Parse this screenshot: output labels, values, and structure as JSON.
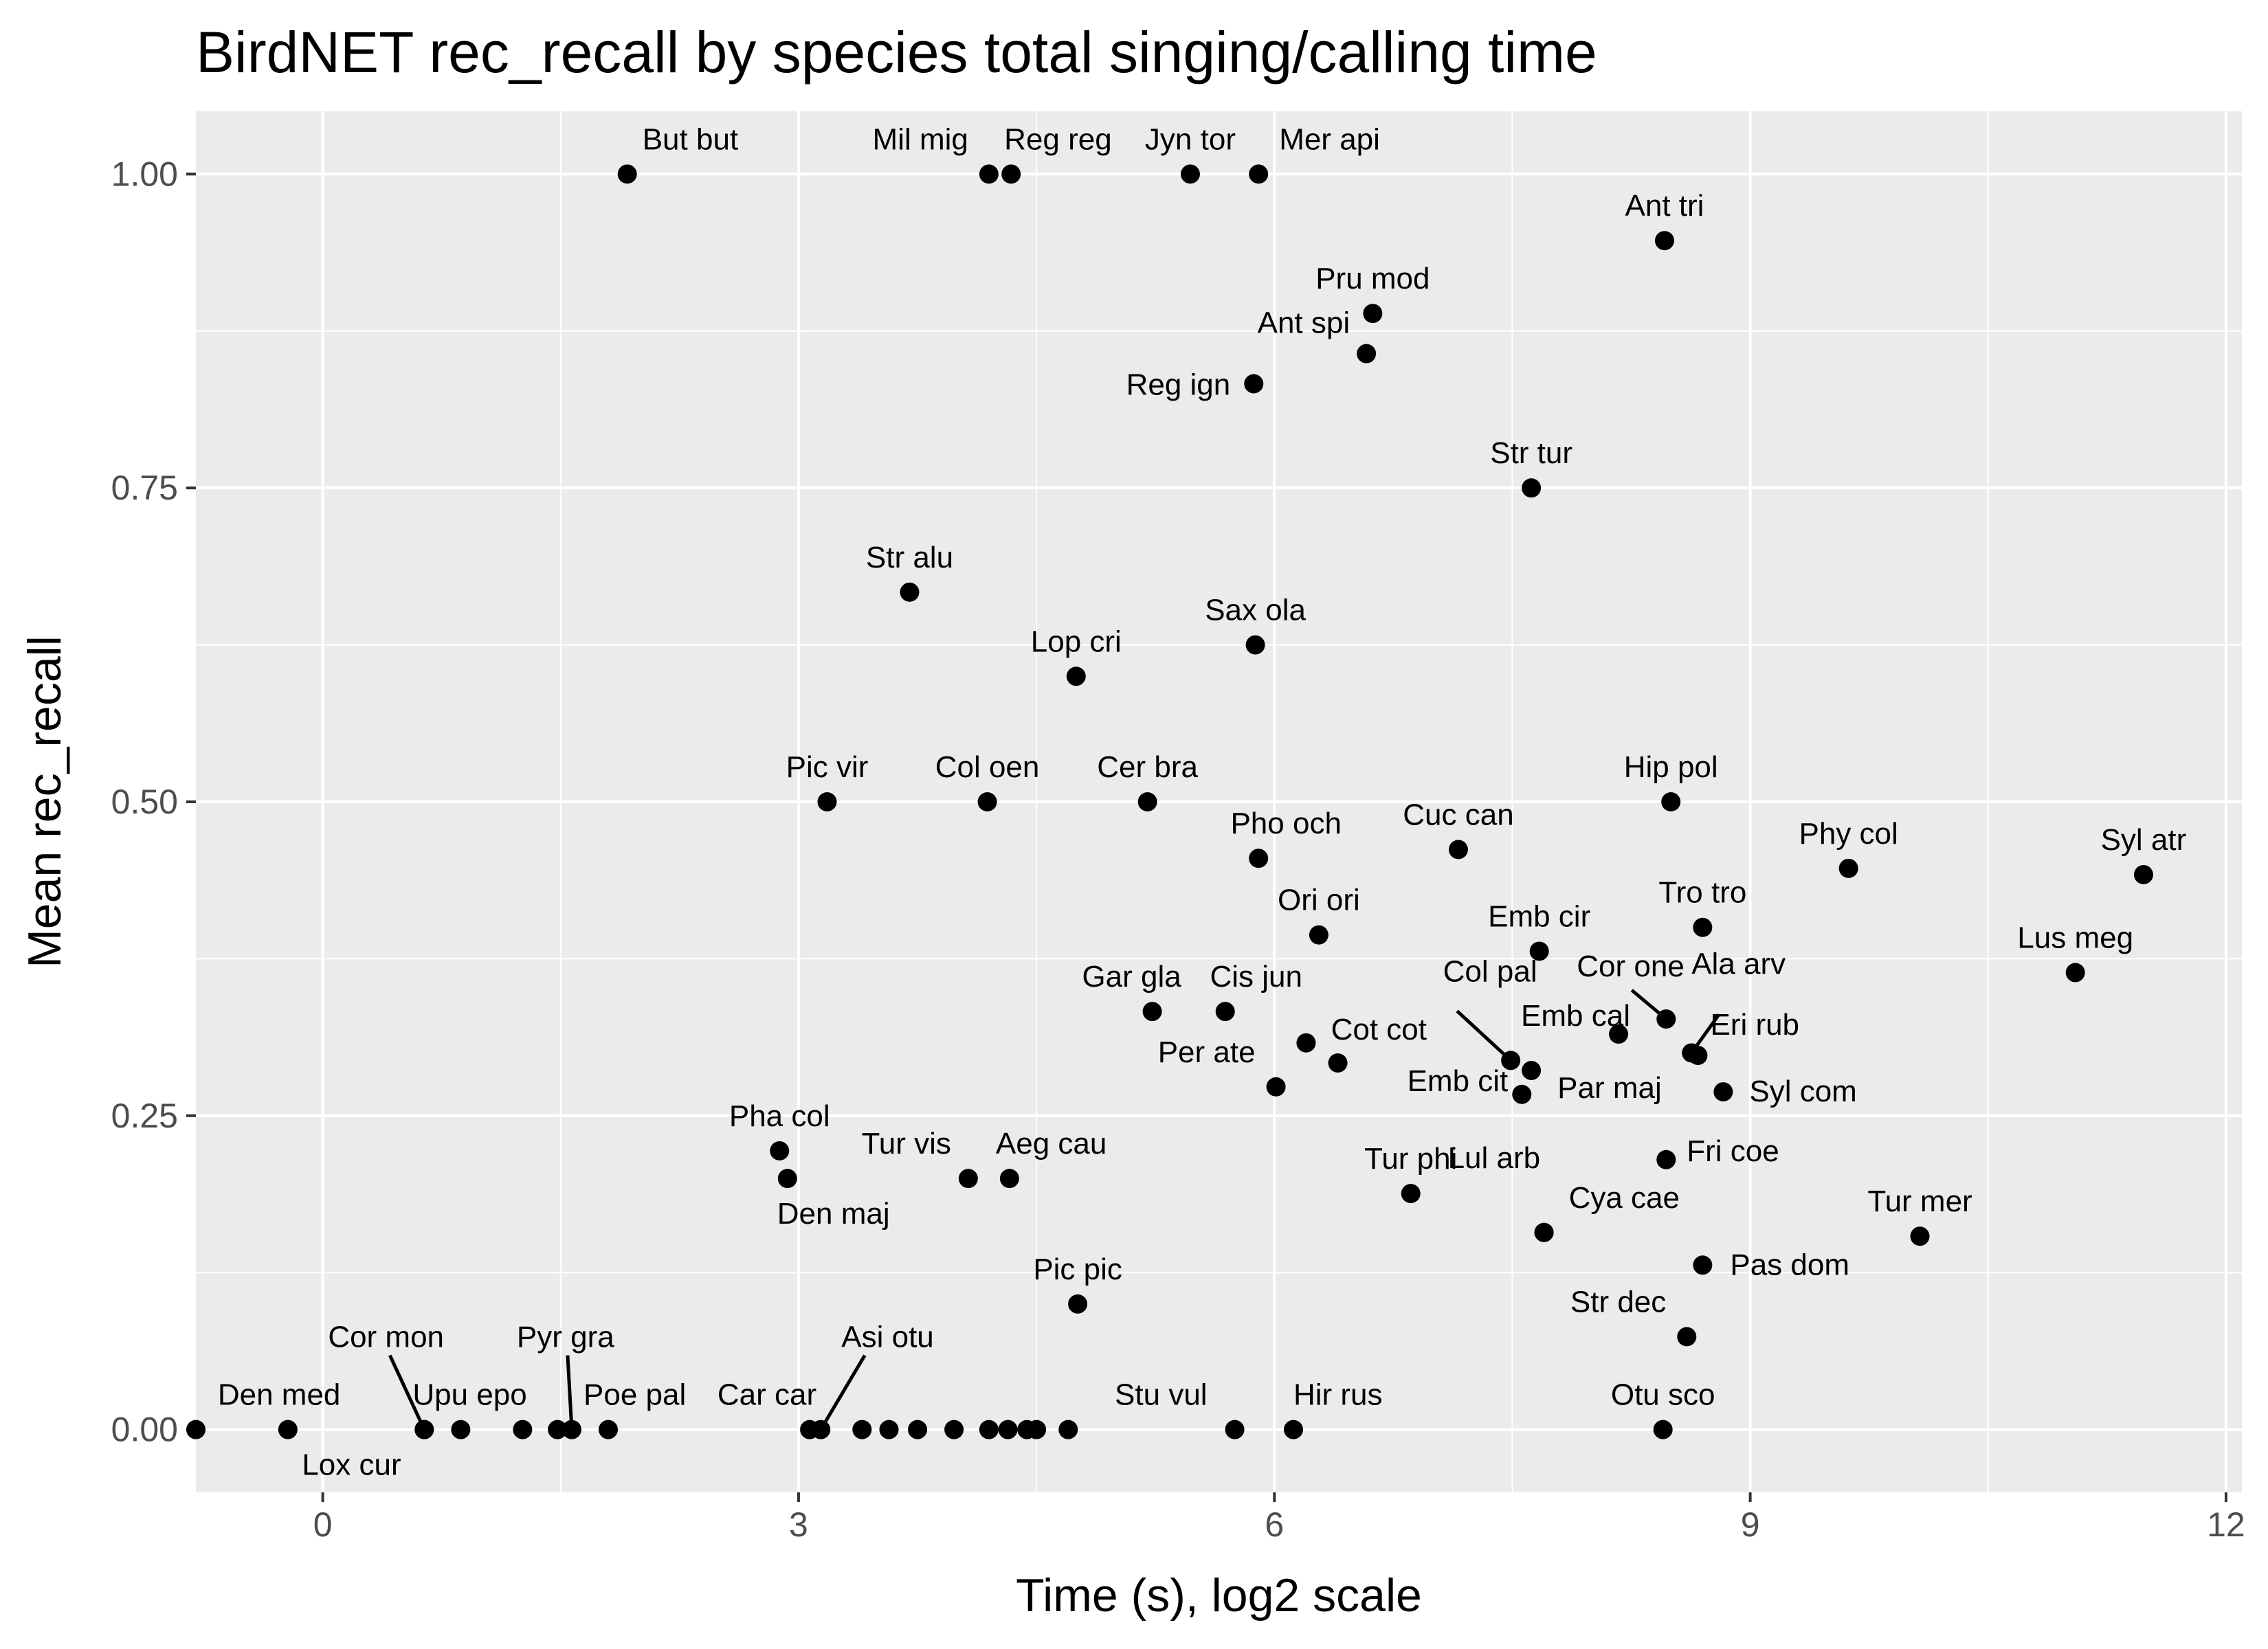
{
  "chart_data": {
    "type": "scatter",
    "title": "BirdNET rec_recall by species total singing/calling time",
    "xlabel": "Time (s), log2 scale",
    "ylabel": "Mean rec_recall",
    "xlim": [
      -0.8,
      12.1
    ],
    "ylim": [
      -0.05,
      1.05
    ],
    "x_ticks": [
      0,
      3,
      6,
      9,
      12
    ],
    "x_tick_labels": [
      "0",
      "3",
      "6",
      "9",
      "12"
    ],
    "y_ticks": [
      0,
      0.25,
      0.5,
      0.75,
      1.0
    ],
    "y_tick_labels": [
      "0.00",
      "0.25",
      "0.50",
      "0.75",
      "1.00"
    ],
    "grid": true,
    "colors": {
      "panel": "#ebebeb",
      "grid": "#ffffff",
      "point": "#000000"
    },
    "points": [
      {
        "label": "But but",
        "x": 1.92,
        "y": 1.0
      },
      {
        "label": "Mil mig",
        "x": 4.2,
        "y": 1.0
      },
      {
        "label": "Reg reg",
        "x": 4.34,
        "y": 1.0
      },
      {
        "label": "Jyn tor",
        "x": 5.47,
        "y": 1.0
      },
      {
        "label": "Mer api",
        "x": 5.9,
        "y": 1.0
      },
      {
        "label": "Ant tri",
        "x": 8.46,
        "y": 0.947
      },
      {
        "label": "Pru mod",
        "x": 6.62,
        "y": 0.889
      },
      {
        "label": "Ant spi",
        "x": 6.58,
        "y": 0.857
      },
      {
        "label": "Reg ign",
        "x": 5.87,
        "y": 0.833
      },
      {
        "label": "Str tur",
        "x": 7.62,
        "y": 0.75
      },
      {
        "label": "Str alu",
        "x": 3.7,
        "y": 0.667
      },
      {
        "label": "Sax ola",
        "x": 5.88,
        "y": 0.625
      },
      {
        "label": "Lop cri",
        "x": 4.75,
        "y": 0.6
      },
      {
        "label": "Pic vir",
        "x": 3.18,
        "y": 0.5
      },
      {
        "label": "Col oen",
        "x": 4.19,
        "y": 0.5
      },
      {
        "label": "Cer bra",
        "x": 5.2,
        "y": 0.5
      },
      {
        "label": "Hip pol",
        "x": 8.5,
        "y": 0.5
      },
      {
        "label": "Pho och",
        "x": 5.9,
        "y": 0.455
      },
      {
        "label": "Cuc can",
        "x": 7.16,
        "y": 0.462
      },
      {
        "label": "Phy col",
        "x": 9.62,
        "y": 0.447
      },
      {
        "label": "Syl atr",
        "x": 11.48,
        "y": 0.442
      },
      {
        "label": "Ori ori",
        "x": 6.28,
        "y": 0.394
      },
      {
        "label": "Emb cir",
        "x": 7.67,
        "y": 0.381
      },
      {
        "label": "Tro tro",
        "x": 8.7,
        "y": 0.4
      },
      {
        "label": "Lus meg",
        "x": 11.05,
        "y": 0.364
      },
      {
        "label": "Gar gla",
        "x": 5.23,
        "y": 0.333
      },
      {
        "label": "Cis jun",
        "x": 5.69,
        "y": 0.333
      },
      {
        "label": "Col pal",
        "x": 7.49,
        "y": 0.294
      },
      {
        "label": "Cor one",
        "x": 8.47,
        "y": 0.327
      },
      {
        "label": "Ala arv",
        "x": 8.63,
        "y": 0.3
      },
      {
        "label": "Emb cal",
        "x": 8.17,
        "y": 0.315
      },
      {
        "label": "Eri rub",
        "x": 8.67,
        "y": 0.298
      },
      {
        "label": "Per ate",
        "x": 6.01,
        "y": 0.273
      },
      {
        "label": "Cot cot",
        "x": 6.4,
        "y": 0.292
      },
      {
        "label": "",
        "x": 6.2,
        "y": 0.308
      },
      {
        "label": "Emb cit",
        "x": 7.56,
        "y": 0.267
      },
      {
        "label": "Par maj",
        "x": 7.62,
        "y": 0.286
      },
      {
        "label": "Syl com",
        "x": 8.83,
        "y": 0.269
      },
      {
        "label": "Pha col",
        "x": 2.88,
        "y": 0.222
      },
      {
        "label": "Den maj",
        "x": 2.93,
        "y": 0.2
      },
      {
        "label": "Tur vis",
        "x": 4.07,
        "y": 0.2
      },
      {
        "label": "Aeg cau",
        "x": 4.33,
        "y": 0.2
      },
      {
        "label": "Lul arb",
        "x": 7.7,
        "y": 0.157
      },
      {
        "label": "Fri coe",
        "x": 8.47,
        "y": 0.215
      },
      {
        "label": "Tur phi",
        "x": 6.86,
        "y": 0.188
      },
      {
        "label": "Cya cae",
        "x": 7.7,
        "y": 0.157
      },
      {
        "label": "Tur mer",
        "x": 10.07,
        "y": 0.154
      },
      {
        "label": "Pas dom",
        "x": 8.7,
        "y": 0.131
      },
      {
        "label": "Pic pic",
        "x": 4.76,
        "y": 0.1
      },
      {
        "label": "Str dec",
        "x": 8.6,
        "y": 0.074
      },
      {
        "label": "",
        "x": -0.8,
        "y": 0.0
      },
      {
        "label": "Den med",
        "x": -0.22,
        "y": 0.0
      },
      {
        "label": "Cor mon",
        "x": 0.64,
        "y": 0.0
      },
      {
        "label": "Lox cur",
        "x": 0.64,
        "y": 0.0
      },
      {
        "label": "Upu epo",
        "x": 0.87,
        "y": 0.0
      },
      {
        "label": "",
        "x": 1.26,
        "y": 0.0
      },
      {
        "label": "",
        "x": 1.48,
        "y": 0.0
      },
      {
        "label": "Pyr gra",
        "x": 1.57,
        "y": 0.0
      },
      {
        "label": "Poe pal",
        "x": 1.8,
        "y": 0.0
      },
      {
        "label": "Car car",
        "x": 3.07,
        "y": 0.0
      },
      {
        "label": "Asi otu",
        "x": 3.14,
        "y": 0.0
      },
      {
        "label": "",
        "x": 3.4,
        "y": 0.0
      },
      {
        "label": "",
        "x": 3.57,
        "y": 0.0
      },
      {
        "label": "",
        "x": 3.75,
        "y": 0.0
      },
      {
        "label": "",
        "x": 3.98,
        "y": 0.0
      },
      {
        "label": "",
        "x": 4.2,
        "y": 0.0
      },
      {
        "label": "",
        "x": 4.32,
        "y": 0.0
      },
      {
        "label": "",
        "x": 4.44,
        "y": 0.0
      },
      {
        "label": "",
        "x": 4.5,
        "y": 0.0
      },
      {
        "label": "",
        "x": 4.7,
        "y": 0.0
      },
      {
        "label": "Stu vul",
        "x": 5.75,
        "y": 0.0
      },
      {
        "label": "Hir rus",
        "x": 6.12,
        "y": 0.0
      },
      {
        "label": "Otu sco",
        "x": 8.45,
        "y": 0.0
      }
    ]
  }
}
